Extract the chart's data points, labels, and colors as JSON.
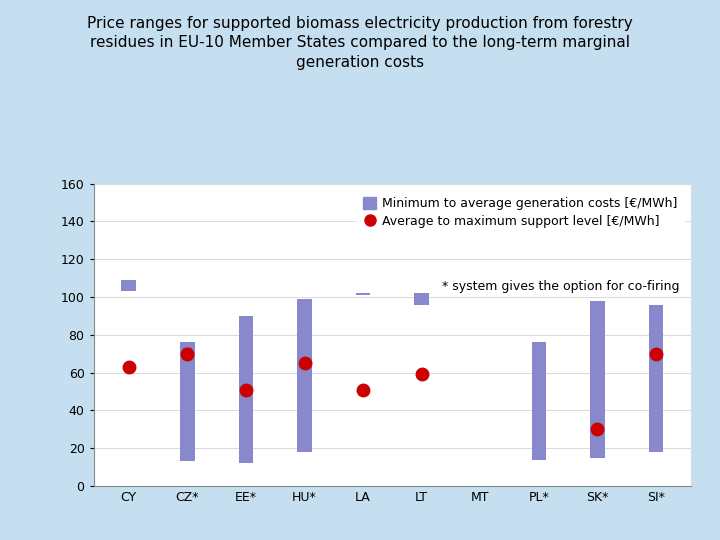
{
  "title_line1": "Price ranges for supported biomass electricity production from forestry",
  "title_line2": "residues in EU-10 Member States compared to the long-term marginal",
  "title_line3": "generation costs",
  "bg_color": "#c5dff0",
  "plot_bg_color": "#ffffff",
  "bar_color": "#8888cc",
  "dot_color": "#cc0000",
  "categories": [
    "CY",
    "CZ*",
    "EE*",
    "HU*",
    "LA",
    "LT",
    "MT",
    "PL*",
    "SK*",
    "SI*"
  ],
  "bar_bottom": [
    103,
    13,
    12,
    18,
    101,
    96,
    null,
    14,
    15,
    18
  ],
  "bar_top": [
    109,
    76,
    90,
    99,
    102,
    102,
    null,
    76,
    98,
    96
  ],
  "dot_y": [
    63,
    70,
    51,
    65,
    51,
    59,
    null,
    null,
    30,
    70
  ],
  "dot_yerr": [
    null,
    3,
    null,
    2,
    null,
    null,
    null,
    null,
    null,
    null
  ],
  "ylim": [
    0,
    160
  ],
  "yticks": [
    0,
    20,
    40,
    60,
    80,
    100,
    120,
    140,
    160
  ],
  "legend_bar_label": "Minimum to average generation costs [€/MWh]",
  "legend_dot_label": "Average to maximum support level [€/MWh]",
  "legend_note": "* system gives the option for co-firing",
  "bar_width": 0.25,
  "title_fontsize": 11,
  "tick_fontsize": 9,
  "legend_fontsize": 9
}
